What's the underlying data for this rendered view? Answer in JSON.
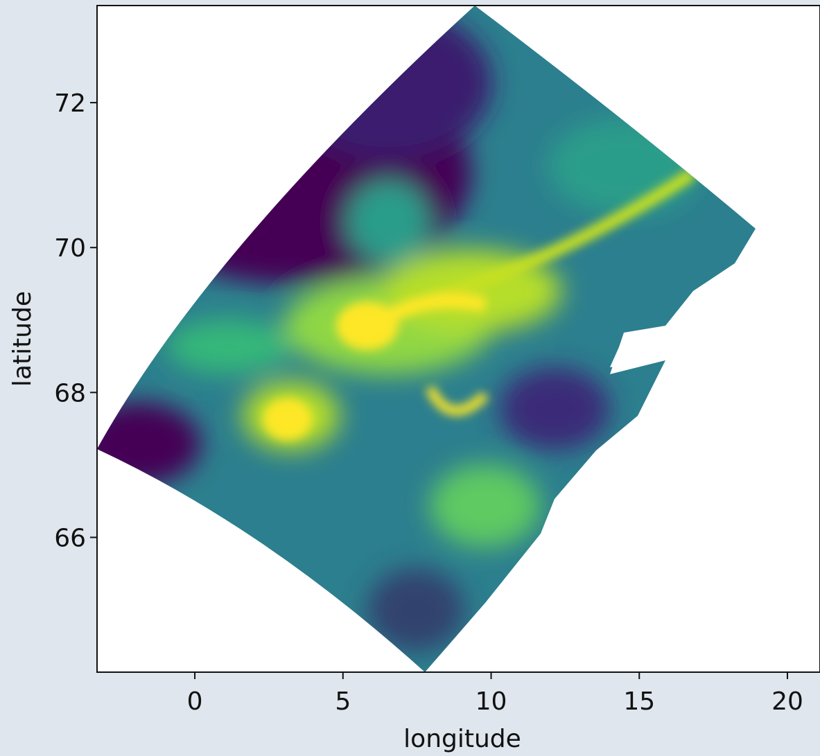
{
  "chart_data": {
    "type": "heatmap",
    "xlabel": "longitude",
    "ylabel": "latitude",
    "xlim": [
      -3.3,
      21.1
    ],
    "ylim": [
      64.14,
      73.34
    ],
    "xticks": [
      0,
      5,
      10,
      15,
      20
    ],
    "yticks": [
      66,
      68,
      70,
      72
    ]
  }
}
